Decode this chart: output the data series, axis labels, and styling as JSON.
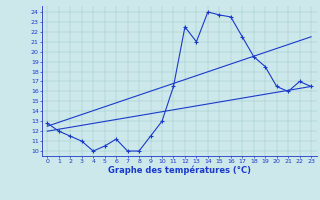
{
  "title": "Graphe des températures (°C)",
  "bg_color": "#cce8ea",
  "line_color": "#1a3acc",
  "xlim": [
    -0.5,
    23.5
  ],
  "ylim": [
    9.5,
    24.6
  ],
  "xticks": [
    0,
    1,
    2,
    3,
    4,
    5,
    6,
    7,
    8,
    9,
    10,
    11,
    12,
    13,
    14,
    15,
    16,
    17,
    18,
    19,
    20,
    21,
    22,
    23
  ],
  "yticks": [
    10,
    11,
    12,
    13,
    14,
    15,
    16,
    17,
    18,
    19,
    20,
    21,
    22,
    23,
    24
  ],
  "curve1_x": [
    0,
    1,
    2,
    3,
    4,
    5,
    6,
    7,
    8,
    9,
    10,
    11,
    12,
    13,
    14,
    15,
    16,
    17,
    18,
    19,
    20,
    21,
    22,
    23
  ],
  "curve1_y": [
    12.8,
    12.0,
    11.5,
    11.0,
    10.0,
    10.5,
    11.2,
    10.0,
    10.0,
    11.5,
    13.0,
    16.5,
    22.5,
    21.0,
    24.0,
    23.7,
    23.5,
    21.5,
    19.5,
    18.5,
    16.5,
    16.0,
    17.0,
    16.5
  ],
  "line2_x": [
    0,
    23
  ],
  "line2_y": [
    12.0,
    16.5
  ],
  "line3_x": [
    0,
    23
  ],
  "line3_y": [
    12.5,
    21.5
  ],
  "tick_fontsize": 4.5,
  "xlabel_fontsize": 6.0
}
